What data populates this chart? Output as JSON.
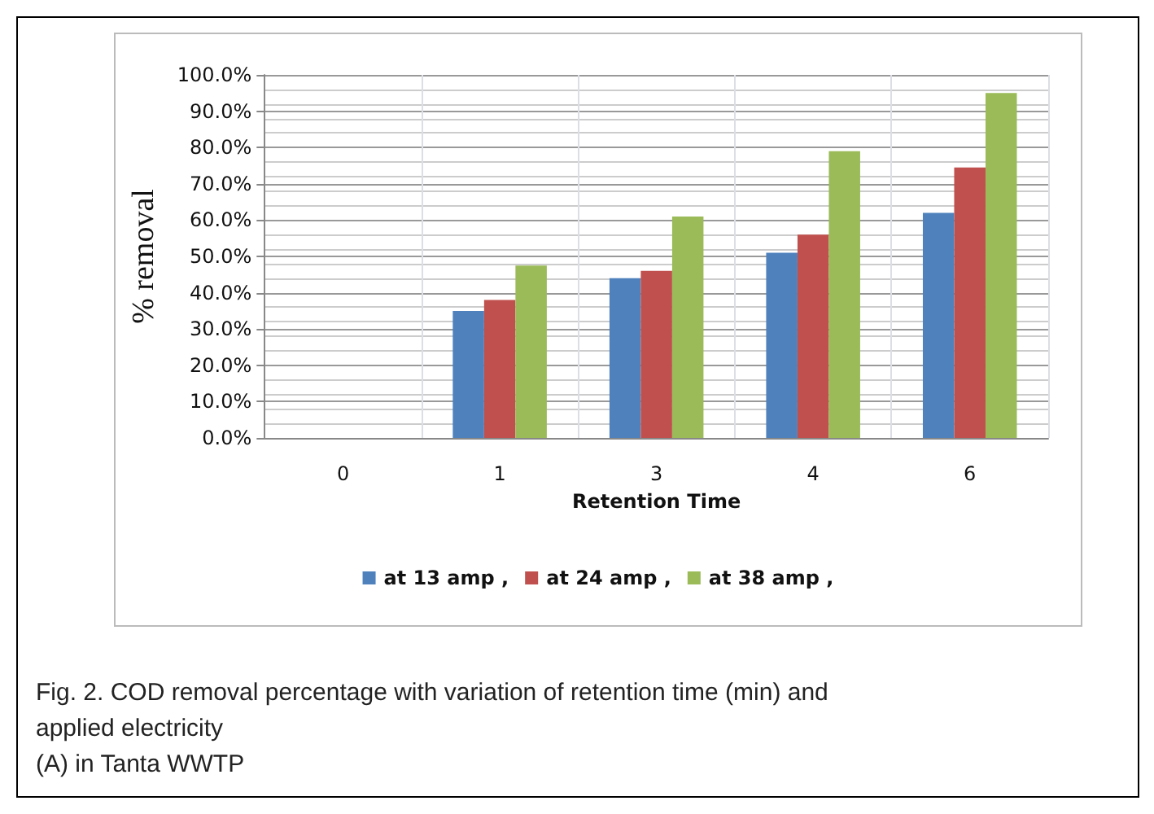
{
  "chart_data": {
    "type": "bar",
    "xlabel": "Retention Time",
    "ylabel": "% removal",
    "categories": [
      "0",
      "1",
      "3",
      "4",
      "6"
    ],
    "series": [
      {
        "name": "at 13 amp ,",
        "color": "#4f81bd",
        "values": [
          0,
          35,
          44,
          51,
          62
        ]
      },
      {
        "name": "at 24 amp ,",
        "color": "#c0504d",
        "values": [
          0,
          38,
          46,
          56,
          74.5
        ]
      },
      {
        "name": "at 38 amp ,",
        "color": "#9bbb59",
        "values": [
          0,
          47.5,
          61,
          79,
          95
        ]
      }
    ],
    "ylim": [
      0,
      100
    ],
    "yticks": [
      {
        "value": 0,
        "label": "0.0%"
      },
      {
        "value": 10,
        "label": "10.0%"
      },
      {
        "value": 20,
        "label": "20.0%"
      },
      {
        "value": 30,
        "label": "30.0%"
      },
      {
        "value": 40,
        "label": "40.0%"
      },
      {
        "value": 50,
        "label": "50.0%"
      },
      {
        "value": 60,
        "label": "60.0%"
      },
      {
        "value": 70,
        "label": "70.0%"
      },
      {
        "value": 80,
        "label": "80.0%"
      },
      {
        "value": 90,
        "label": "90.0%"
      },
      {
        "value": 100,
        "label": "100.0%"
      }
    ],
    "grid": true,
    "legend": "bottom",
    "annotations": [
      "Fig. 2. COD removal percentage with variation of retention time (min) and applied electricity",
      "(A) in Tanta WWTP"
    ]
  }
}
